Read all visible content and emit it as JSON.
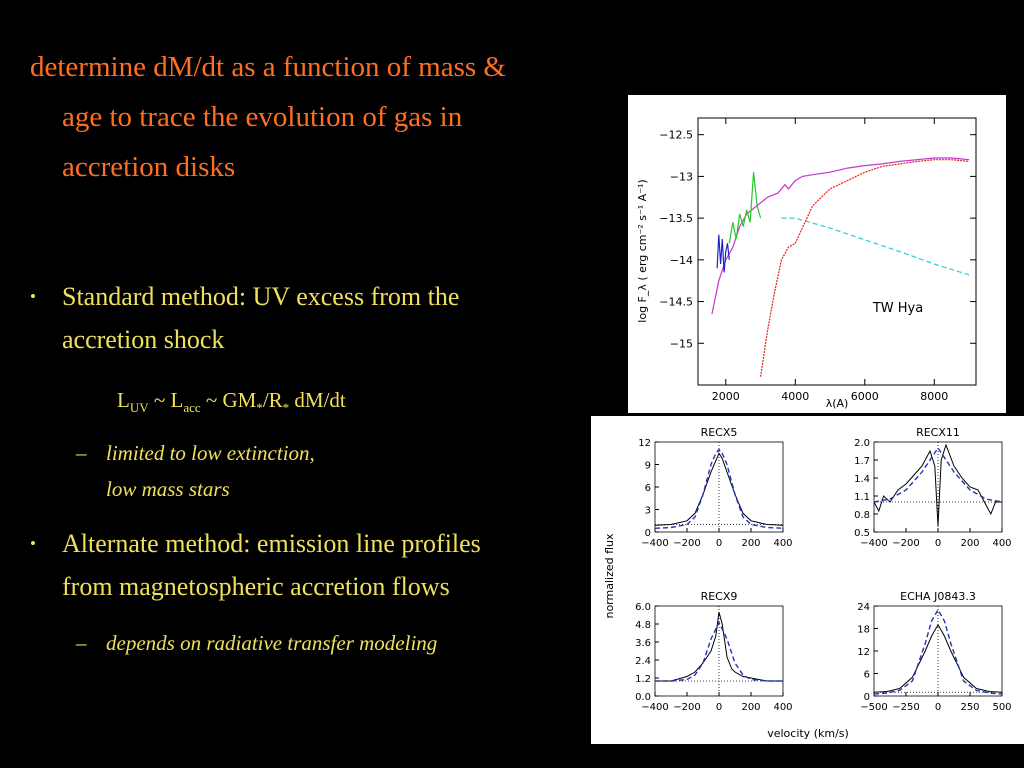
{
  "title": {
    "line1": "determine dM/dt as a function of mass &",
    "line2": "age to trace the evolution of gas in",
    "line3": "accretion disks"
  },
  "bullet1": {
    "line1": "Standard method:  UV excess from   the",
    "line2": "accretion shock"
  },
  "equation": {
    "parts": [
      "L",
      "UV",
      " ~ L",
      "acc",
      " ~ GM",
      "*",
      "/R",
      "*",
      " dM/dt"
    ]
  },
  "sub1": {
    "line1": "limited to low extinction,",
    "line2": "low mass stars",
    "dash": "–"
  },
  "bullet2": {
    "line1": "Alternate method:  emission line profiles",
    "line2": "from magnetospheric accretion flows"
  },
  "sub2": {
    "text": "depends on  radiative transfer modeling",
    "dash": "–"
  },
  "bullet_symbol": "•",
  "colors": {
    "title": "#ff6f1f",
    "body": "#f0e15a",
    "background": "#000000"
  },
  "chart_data": [
    {
      "type": "line",
      "annotation": "TW Hya",
      "xlabel": "λ(A)",
      "ylabel": "log F_λ ( erg cm⁻² s⁻¹ A⁻¹)",
      "xlim": [
        1200,
        9200
      ],
      "ylim": [
        -15.5,
        -12.3
      ],
      "xticks": [
        2000,
        4000,
        6000,
        8000
      ],
      "yticks": [
        -12.5,
        -13,
        -13.5,
        -14,
        -14.5,
        -15
      ],
      "ytick_labels": [
        "−12.5",
        "−13",
        "−13.5",
        "−14",
        "−14.5",
        "−15"
      ],
      "series": [
        {
          "color": "#cc33cc",
          "x": [
            1600,
            1800,
            2000,
            2200,
            2400,
            2600,
            2900,
            3200,
            3500,
            3700,
            3800,
            4000,
            4200,
            4500,
            5000,
            5500,
            6000,
            6500,
            7000,
            7500,
            8000,
            8500,
            9000
          ],
          "y": [
            -14.65,
            -14.25,
            -14.0,
            -13.85,
            -13.6,
            -13.45,
            -13.35,
            -13.25,
            -13.2,
            -13.1,
            -13.15,
            -13.05,
            -13.0,
            -12.98,
            -12.95,
            -12.9,
            -12.87,
            -12.85,
            -12.82,
            -12.8,
            -12.78,
            -12.78,
            -12.8
          ]
        },
        {
          "color": "#2222cc",
          "x": [
            1750,
            1800,
            1850,
            1900,
            1950,
            2000,
            2050,
            2100
          ],
          "y": [
            -14.1,
            -13.7,
            -14.05,
            -13.75,
            -14.15,
            -13.9,
            -13.8,
            -14.0
          ]
        },
        {
          "color": "#22cc22",
          "x": [
            2100,
            2200,
            2300,
            2400,
            2500,
            2600,
            2700,
            2800,
            2900,
            3000
          ],
          "y": [
            -13.8,
            -13.55,
            -13.75,
            -13.45,
            -13.6,
            -13.4,
            -13.55,
            -12.95,
            -13.35,
            -13.5
          ]
        },
        {
          "color": "#33cccc",
          "x": [
            3600,
            4000,
            5000,
            6000,
            7000,
            8000,
            9000
          ],
          "y": [
            -13.5,
            -13.5,
            -13.62,
            -13.76,
            -13.9,
            -14.05,
            -14.18
          ]
        },
        {
          "color": "#dd2222",
          "x": [
            3000,
            3200,
            3400,
            3600,
            3800,
            4000,
            4500,
            5000,
            5500,
            6000,
            6500,
            7000,
            7500,
            8000,
            8500,
            9000
          ],
          "y": [
            -15.4,
            -14.85,
            -14.4,
            -14.0,
            -13.85,
            -13.8,
            -13.35,
            -13.15,
            -13.05,
            -12.95,
            -12.88,
            -12.85,
            -12.82,
            -12.8,
            -12.8,
            -12.82
          ]
        }
      ]
    },
    {
      "type": "line",
      "xlabel": "velocity (km/s)",
      "ylabel": "normalized flux",
      "panels": [
        {
          "title": "RECX5",
          "xlim": [
            -400,
            400
          ],
          "ylim": [
            0,
            12
          ],
          "xticks": [
            -400,
            -200,
            0,
            200,
            400
          ],
          "xtick_labels": [
            "−400",
            "−200",
            "0",
            "200",
            "400"
          ],
          "yticks": [
            0,
            3,
            6,
            9,
            12
          ],
          "ytick_labels": [
            "0",
            "3",
            "6",
            "9",
            "12"
          ],
          "hline": 1,
          "observed": [
            [
              -400,
              0.9
            ],
            [
              -300,
              1.0
            ],
            [
              -200,
              1.5
            ],
            [
              -150,
              2.5
            ],
            [
              -100,
              5.0
            ],
            [
              -50,
              8.0
            ],
            [
              -20,
              9.5
            ],
            [
              0,
              10.5
            ],
            [
              20,
              9.8
            ],
            [
              50,
              8.0
            ],
            [
              100,
              5.0
            ],
            [
              150,
              2.5
            ],
            [
              200,
              1.5
            ],
            [
              300,
              1.0
            ],
            [
              400,
              0.9
            ]
          ],
          "model": [
            [
              -400,
              0.5
            ],
            [
              -300,
              0.6
            ],
            [
              -200,
              1.0
            ],
            [
              -150,
              2.0
            ],
            [
              -100,
              5.0
            ],
            [
              -50,
              9.0
            ],
            [
              -20,
              10.5
            ],
            [
              0,
              11.0
            ],
            [
              20,
              10.5
            ],
            [
              50,
              9.0
            ],
            [
              100,
              5.0
            ],
            [
              150,
              2.0
            ],
            [
              200,
              1.0
            ],
            [
              300,
              0.6
            ],
            [
              400,
              0.5
            ]
          ]
        },
        {
          "title": "RECX11",
          "xlim": [
            -400,
            400
          ],
          "ylim": [
            0.5,
            2.0
          ],
          "xticks": [
            -400,
            -200,
            0,
            200,
            400
          ],
          "xtick_labels": [
            "−400",
            "−200",
            "0",
            "200",
            "400"
          ],
          "yticks": [
            0.5,
            0.8,
            1.1,
            1.4,
            1.7,
            2.0
          ],
          "ytick_labels": [
            "0.5",
            "0.8",
            "1.1",
            "1.4",
            "1.7",
            "2.0"
          ],
          "hline": 1.0,
          "observed": [
            [
              -400,
              1.0
            ],
            [
              -370,
              0.85
            ],
            [
              -340,
              1.1
            ],
            [
              -300,
              1.0
            ],
            [
              -250,
              1.2
            ],
            [
              -200,
              1.3
            ],
            [
              -150,
              1.45
            ],
            [
              -100,
              1.6
            ],
            [
              -50,
              1.85
            ],
            [
              -20,
              1.6
            ],
            [
              0,
              0.6
            ],
            [
              20,
              1.7
            ],
            [
              50,
              1.95
            ],
            [
              100,
              1.6
            ],
            [
              150,
              1.4
            ],
            [
              200,
              1.25
            ],
            [
              250,
              1.2
            ],
            [
              300,
              0.95
            ],
            [
              330,
              0.8
            ],
            [
              360,
              1.0
            ],
            [
              400,
              1.0
            ]
          ],
          "model": [
            [
              -400,
              1.0
            ],
            [
              -300,
              1.05
            ],
            [
              -200,
              1.2
            ],
            [
              -100,
              1.5
            ],
            [
              -50,
              1.7
            ],
            [
              0,
              1.9
            ],
            [
              50,
              1.7
            ],
            [
              100,
              1.5
            ],
            [
              200,
              1.2
            ],
            [
              300,
              1.05
            ],
            [
              400,
              1.0
            ]
          ]
        },
        {
          "title": "RECX9",
          "xlim": [
            -400,
            400
          ],
          "ylim": [
            0,
            6
          ],
          "xticks": [
            -400,
            -200,
            0,
            200,
            400
          ],
          "xtick_labels": [
            "−400",
            "−200",
            "0",
            "200",
            "400"
          ],
          "yticks": [
            0,
            1.2,
            2.4,
            3.6,
            4.8,
            6.0
          ],
          "ytick_labels": [
            "0.0",
            "1.2",
            "2.4",
            "3.6",
            "4.8",
            "6.0"
          ],
          "hline": 1.0,
          "observed": [
            [
              -400,
              1.0
            ],
            [
              -300,
              1.0
            ],
            [
              -200,
              1.3
            ],
            [
              -150,
              1.6
            ],
            [
              -100,
              2.2
            ],
            [
              -50,
              3.0
            ],
            [
              -20,
              4.0
            ],
            [
              0,
              5.6
            ],
            [
              20,
              4.8
            ],
            [
              50,
              2.6
            ],
            [
              80,
              1.8
            ],
            [
              100,
              1.6
            ],
            [
              150,
              1.3
            ],
            [
              200,
              1.2
            ],
            [
              300,
              1.0
            ],
            [
              400,
              1.0
            ]
          ],
          "model": [
            [
              -400,
              1.0
            ],
            [
              -300,
              1.0
            ],
            [
              -200,
              1.1
            ],
            [
              -150,
              1.4
            ],
            [
              -100,
              2.2
            ],
            [
              -50,
              3.8
            ],
            [
              0,
              4.9
            ],
            [
              50,
              3.8
            ],
            [
              100,
              2.2
            ],
            [
              150,
              1.4
            ],
            [
              200,
              1.1
            ],
            [
              300,
              1.0
            ],
            [
              400,
              1.0
            ]
          ]
        },
        {
          "title": "ECHA J0843.3",
          "xlim": [
            -500,
            500
          ],
          "ylim": [
            0,
            24
          ],
          "xticks": [
            -500,
            -250,
            0,
            250,
            500
          ],
          "xtick_labels": [
            "−500",
            "−250",
            "0",
            "250",
            "500"
          ],
          "yticks": [
            0,
            6,
            12,
            18,
            24
          ],
          "ytick_labels": [
            "0",
            "6",
            "12",
            "18",
            "24"
          ],
          "hline": 1,
          "observed": [
            [
              -500,
              1.0
            ],
            [
              -400,
              1.2
            ],
            [
              -300,
              2.0
            ],
            [
              -200,
              5.0
            ],
            [
              -100,
              12.0
            ],
            [
              -50,
              16.0
            ],
            [
              0,
              19.0
            ],
            [
              50,
              16.0
            ],
            [
              100,
              12.0
            ],
            [
              200,
              5.0
            ],
            [
              300,
              2.0
            ],
            [
              400,
              1.2
            ],
            [
              500,
              1.0
            ]
          ],
          "model": [
            [
              -500,
              0.5
            ],
            [
              -400,
              0.8
            ],
            [
              -300,
              1.5
            ],
            [
              -200,
              4.0
            ],
            [
              -100,
              14.0
            ],
            [
              -50,
              20.0
            ],
            [
              0,
              23.0
            ],
            [
              50,
              20.0
            ],
            [
              100,
              14.0
            ],
            [
              200,
              4.0
            ],
            [
              300,
              1.5
            ],
            [
              400,
              0.8
            ],
            [
              500,
              0.5
            ]
          ]
        }
      ]
    }
  ]
}
